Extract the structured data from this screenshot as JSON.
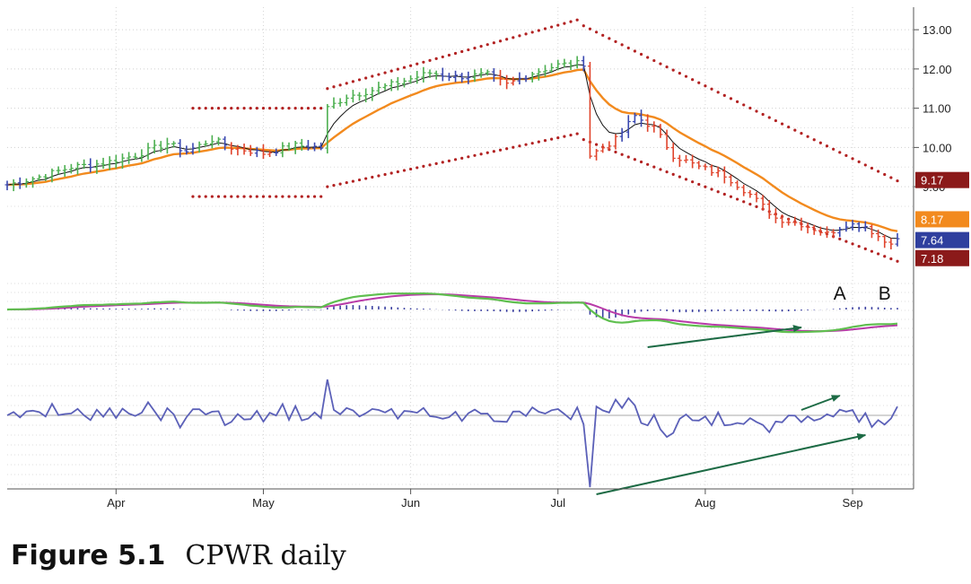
{
  "caption": {
    "figure_number": "Figure 5.1",
    "text": "CPWR daily"
  },
  "chart_data": {
    "type": "line",
    "ticker": "CPWR",
    "timeframe": "daily",
    "x_axis": {
      "labels": [
        "Apr",
        "May",
        "Jun",
        "Jul",
        "Aug",
        "Sep"
      ],
      "label_index": [
        17,
        40,
        63,
        86,
        109,
        132
      ],
      "length": 140
    },
    "price_axis": {
      "ticks": [
        "13.00",
        "12.00",
        "11.00",
        "10.00",
        "9.00"
      ],
      "ylim": [
        6.9,
        13.3
      ],
      "grid": true,
      "position": "right"
    },
    "price_badges": [
      {
        "label": "9.17",
        "value": 9.17,
        "color": "#8b1a1a"
      },
      {
        "label": "8.17",
        "value": 8.17,
        "color": "#f28a1e"
      },
      {
        "label": "7.64",
        "value": 7.64,
        "color": "#2f3f9e"
      },
      {
        "label": "7.18",
        "value": 7.18,
        "color": "#8b1a1a"
      }
    ],
    "markers": [
      {
        "label": "A",
        "index": 130
      },
      {
        "label": "B",
        "index": 137
      }
    ],
    "price_anchors": [
      [
        0,
        9.05
      ],
      [
        5,
        9.25
      ],
      [
        10,
        9.5
      ],
      [
        15,
        9.6
      ],
      [
        20,
        9.8
      ],
      [
        25,
        10.1
      ],
      [
        28,
        9.9
      ],
      [
        32,
        10.2
      ],
      [
        35,
        10.0
      ],
      [
        40,
        9.85
      ],
      [
        45,
        10.05
      ],
      [
        49,
        10.0
      ],
      [
        50,
        11.0
      ],
      [
        53,
        11.3
      ],
      [
        58,
        11.5
      ],
      [
        63,
        11.75
      ],
      [
        66,
        11.9
      ],
      [
        70,
        11.8
      ],
      [
        75,
        11.85
      ],
      [
        78,
        11.6
      ],
      [
        82,
        11.9
      ],
      [
        86,
        12.1
      ],
      [
        90,
        12.15
      ],
      [
        91,
        9.8
      ],
      [
        95,
        10.2
      ],
      [
        98,
        10.8
      ],
      [
        101,
        10.5
      ],
      [
        104,
        9.8
      ],
      [
        108,
        9.5
      ],
      [
        112,
        9.3
      ],
      [
        116,
        8.8
      ],
      [
        120,
        8.2
      ],
      [
        124,
        8.05
      ],
      [
        128,
        7.8
      ],
      [
        131,
        8.05
      ],
      [
        134,
        8.0
      ],
      [
        137,
        7.6
      ],
      [
        140,
        7.65
      ]
    ],
    "series": [
      {
        "name": "",
        "role": "price",
        "color": "#2f3f9e"
      },
      {
        "name": "",
        "role": "fast_ma",
        "color": "#111111"
      },
      {
        "name": "",
        "role": "slow_ma",
        "color": "#f28a1e"
      },
      {
        "name": "",
        "role": "envelope",
        "color": "#b22222"
      },
      {
        "name": "",
        "role": "macd_line",
        "color": "#5fbf4f"
      },
      {
        "name": "",
        "role": "macd_signal",
        "color": "#b83aa8"
      },
      {
        "name": "",
        "role": "macd_histogram",
        "color": "#3a3fa0"
      },
      {
        "name": "",
        "role": "oscillator",
        "color": "#5b60b8"
      }
    ],
    "bar_colors": {
      "up": "#4caf50",
      "down": "#e0442c",
      "neutral": "#3a48b0"
    },
    "envelopes": [
      {
        "from": 29,
        "to": 49,
        "upper": 11.0,
        "lower": 8.75
      },
      {
        "from": 50,
        "to": 89,
        "upper_start": 11.5,
        "upper_end": 13.25,
        "lower_start": 9.0,
        "lower_end": 10.35
      },
      {
        "from": 90,
        "to": 139,
        "upper_start": 13.1,
        "upper_end": 9.15,
        "lower_start": 10.2,
        "lower_end": 7.1
      }
    ],
    "annotations": [
      {
        "kind": "arrow",
        "panel": "macd",
        "from": [
          100,
          -1.05
        ],
        "to": [
          124,
          -0.5
        ],
        "color": "#1d6b45"
      },
      {
        "kind": "arrow",
        "panel": "oscillator",
        "from": [
          124,
          0.15
        ],
        "to": [
          130,
          0.55
        ],
        "color": "#1d6b45"
      },
      {
        "kind": "arrow",
        "panel": "oscillator",
        "from": [
          92,
          -2.2
        ],
        "to": [
          134,
          -0.55
        ],
        "color": "#1d6b45"
      }
    ]
  }
}
